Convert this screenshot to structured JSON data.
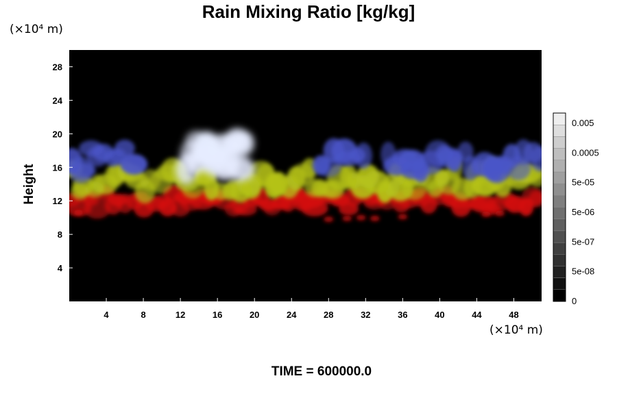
{
  "title": "Rain Mixing Ratio [kg/kg]",
  "time_label": "TIME = 600000.0",
  "y_unit": "(×10⁴ m)",
  "x_unit": "(×10⁴ m)",
  "colors": {
    "background": "#000000",
    "red_layer": "#d41010",
    "yellow_layer": "#b5c21a",
    "blue_layer": "#4a55c8",
    "white_cloud": "#e6ecff"
  },
  "chart_data": {
    "type": "heatmap",
    "title": "Rain Mixing Ratio [kg/kg]",
    "xlabel": "",
    "ylabel": "Height",
    "xlim": [
      0,
      51
    ],
    "ylim": [
      0,
      30
    ],
    "x_ticks": [
      "4",
      "8",
      "12",
      "16",
      "20",
      "24",
      "28",
      "32",
      "36",
      "40",
      "44",
      "48"
    ],
    "y_ticks": [
      "4",
      "8",
      "12",
      "16",
      "20",
      "24",
      "28"
    ],
    "grid": false,
    "colorbar": {
      "labels": [
        "0.005",
        "0.0005",
        "5e-05",
        "5e-06",
        "5e-07",
        "5e-08",
        "0"
      ],
      "levels": 16
    },
    "layers": [
      {
        "color": "red",
        "height_range": [
          10.5,
          13.5
        ],
        "x_range": [
          0,
          51
        ]
      },
      {
        "color": "yellow-green",
        "height_range": [
          12.5,
          16.5
        ],
        "x_range": [
          0,
          51
        ]
      },
      {
        "color": "blue",
        "height_range": [
          15,
          19
        ],
        "x_range": [
          0,
          51
        ]
      },
      {
        "color": "white",
        "height_range": [
          15,
          20
        ],
        "x_range": [
          12.5,
          19
        ]
      }
    ]
  }
}
